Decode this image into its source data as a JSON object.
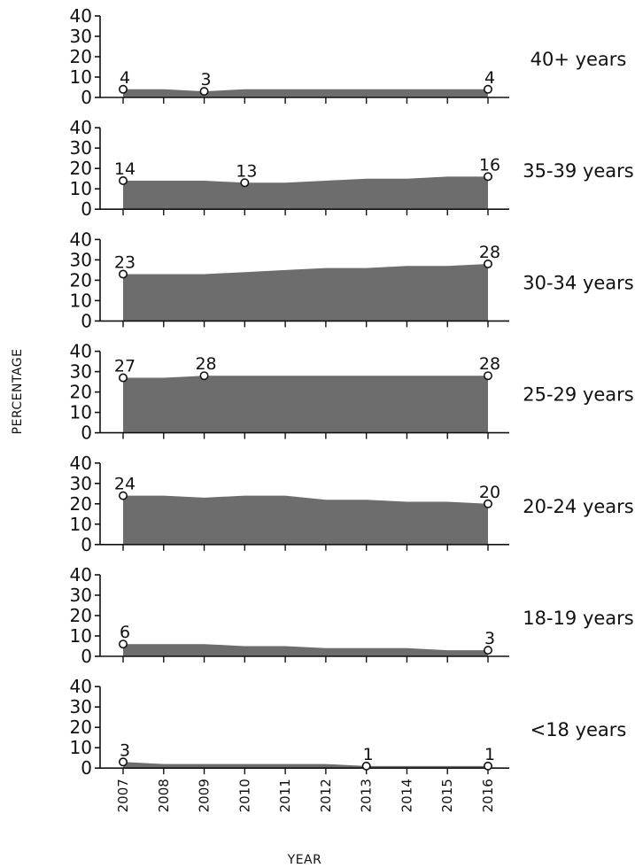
{
  "chart_data": {
    "type": "area",
    "xlabel": "YEAR",
    "ylabel": "PERCENTAGE",
    "ylim": [
      0,
      40
    ],
    "y_ticks": [
      "0",
      "10",
      "20",
      "30",
      "40"
    ],
    "x": [
      "2007",
      "2008",
      "2009",
      "2010",
      "2011",
      "2012",
      "2013",
      "2014",
      "2015",
      "2016"
    ],
    "fill_color": "#6d6d6d",
    "panels": [
      {
        "name": "40+ years",
        "values": [
          4,
          4,
          3,
          4,
          4,
          4,
          4,
          4,
          4,
          4
        ],
        "labels": [
          {
            "x": "2007",
            "value": "4"
          },
          {
            "x": "2009",
            "value": "3"
          },
          {
            "x": "2016",
            "value": "4"
          }
        ]
      },
      {
        "name": "35-39 years",
        "values": [
          14,
          14,
          14,
          13,
          13,
          14,
          15,
          15,
          16,
          16
        ],
        "labels": [
          {
            "x": "2007",
            "value": "14"
          },
          {
            "x": "2010",
            "value": "13"
          },
          {
            "x": "2016",
            "value": "16"
          }
        ]
      },
      {
        "name": "30-34 years",
        "values": [
          23,
          23,
          23,
          24,
          25,
          26,
          26,
          27,
          27,
          28
        ],
        "labels": [
          {
            "x": "2007",
            "value": "23"
          },
          {
            "x": "2016",
            "value": "28"
          }
        ]
      },
      {
        "name": "25-29 years",
        "values": [
          27,
          27,
          28,
          28,
          28,
          28,
          28,
          28,
          28,
          28
        ],
        "labels": [
          {
            "x": "2007",
            "value": "27"
          },
          {
            "x": "2009",
            "value": "28"
          },
          {
            "x": "2016",
            "value": "28"
          }
        ]
      },
      {
        "name": "20-24 years",
        "values": [
          24,
          24,
          23,
          24,
          24,
          22,
          22,
          21,
          21,
          20
        ],
        "labels": [
          {
            "x": "2007",
            "value": "24"
          },
          {
            "x": "2016",
            "value": "20"
          }
        ]
      },
      {
        "name": "18-19 years",
        "values": [
          6,
          6,
          6,
          5,
          5,
          4,
          4,
          4,
          3,
          3
        ],
        "labels": [
          {
            "x": "2007",
            "value": "6"
          },
          {
            "x": "2016",
            "value": "3"
          }
        ]
      },
      {
        "name": "<18 years",
        "values": [
          3,
          2,
          2,
          2,
          2,
          2,
          1,
          1,
          1,
          1
        ],
        "labels": [
          {
            "x": "2007",
            "value": "3"
          },
          {
            "x": "2013",
            "value": "1"
          },
          {
            "x": "2016",
            "value": "1"
          }
        ]
      }
    ]
  }
}
